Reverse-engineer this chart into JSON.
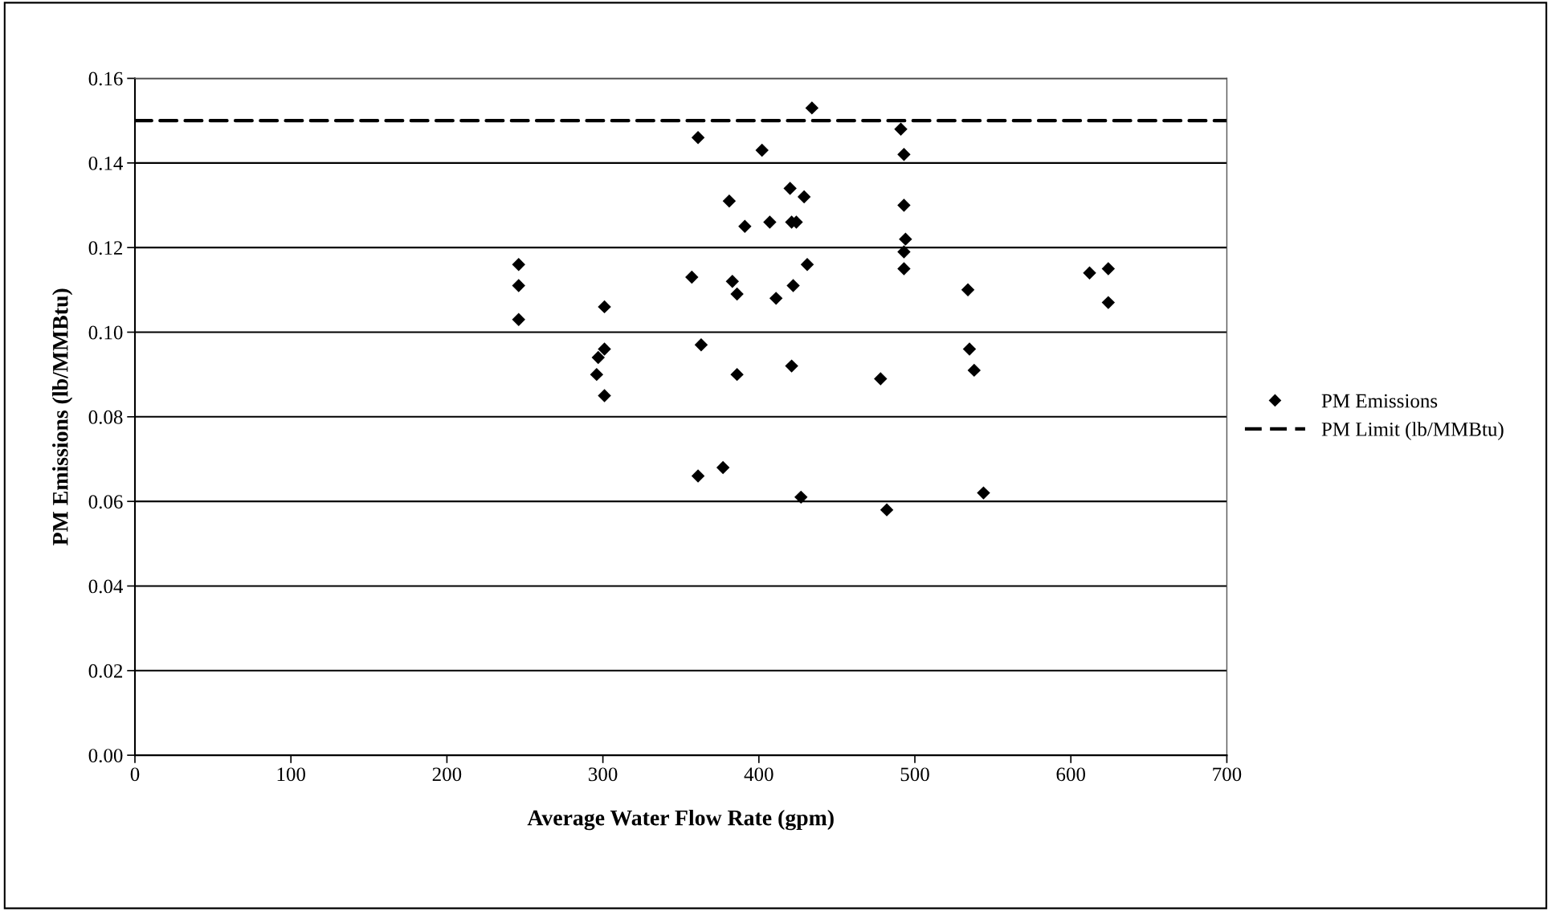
{
  "chart_data": {
    "type": "scatter",
    "xlabel": "Average Water Flow Rate (gpm)",
    "ylabel": "PM Emissions (lb/MMBtu)",
    "xlim": [
      0,
      700
    ],
    "xticks": [
      0,
      100,
      200,
      300,
      400,
      500,
      600,
      700
    ],
    "ylim": [
      0,
      0.16
    ],
    "yticks": [
      {
        "value": 0,
        "label": "0.00"
      },
      {
        "value": 0.02,
        "label": "0.02"
      },
      {
        "value": 0.04,
        "label": "0.04"
      },
      {
        "value": 0.06,
        "label": "0.06"
      },
      {
        "value": 0.08,
        "label": "0.08"
      },
      {
        "value": 0.1,
        "label": "0.10"
      },
      {
        "value": 0.12,
        "label": "0.12"
      },
      {
        "value": 0.14,
        "label": "0.14"
      },
      {
        "value": 0.16,
        "label": "0.16"
      }
    ],
    "grid": "y",
    "legend": "right",
    "marker": "diamond",
    "series": [
      {
        "name": "PM Emissions",
        "color": "#000000",
        "x": [
          434,
          361,
          402,
          491,
          493,
          420,
          429,
          381,
          493,
          391,
          407,
          421,
          424,
          494,
          493,
          246,
          246,
          246,
          431,
          493,
          357,
          383,
          386,
          422,
          411,
          301,
          363,
          301,
          297,
          296,
          301,
          386,
          421,
          478,
          361,
          377,
          427,
          482,
          534,
          535,
          538,
          544,
          612,
          624,
          624
        ],
        "values": [
          0.153,
          0.146,
          0.143,
          0.148,
          0.142,
          0.134,
          0.132,
          0.131,
          0.13,
          0.125,
          0.126,
          0.126,
          0.126,
          0.122,
          0.119,
          0.116,
          0.111,
          0.103,
          0.116,
          0.115,
          0.113,
          0.112,
          0.109,
          0.111,
          0.108,
          0.106,
          0.097,
          0.096,
          0.094,
          0.09,
          0.085,
          0.09,
          0.092,
          0.089,
          0.066,
          0.068,
          0.061,
          0.058,
          0.11,
          0.096,
          0.091,
          0.062,
          0.114,
          0.115,
          0.107
        ]
      }
    ],
    "ref_lines": [
      {
        "axis": "y",
        "value": 0.15,
        "label": "PM Limit (lb/MMBtu)",
        "color": "#000000",
        "line_style": "dashed"
      }
    ]
  }
}
